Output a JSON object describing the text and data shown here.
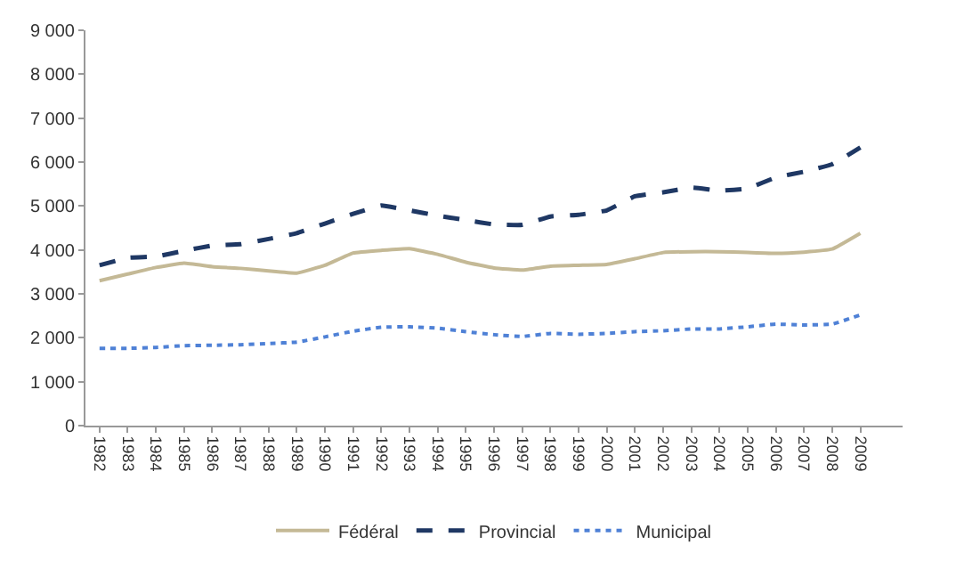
{
  "chart_data": {
    "type": "line",
    "categories": [
      "1982",
      "1983",
      "1984",
      "1985",
      "1986",
      "1987",
      "1988",
      "1989",
      "1990",
      "1991",
      "1992",
      "1993",
      "1994",
      "1995",
      "1996",
      "1997",
      "1998",
      "1999",
      "2000",
      "2001",
      "2002",
      "2003",
      "2004",
      "2005",
      "2006",
      "2007",
      "2008",
      "2009"
    ],
    "series": [
      {
        "name": "Fédéral",
        "color": "#c4b996",
        "line_style": "solid",
        "values": [
          3300,
          3450,
          3600,
          3700,
          3620,
          3580,
          3520,
          3470,
          3650,
          3930,
          3990,
          4030,
          3900,
          3720,
          3590,
          3540,
          3630,
          3650,
          3670,
          3800,
          3940,
          3960,
          3960,
          3940,
          3920,
          3950,
          4020,
          4380
        ]
      },
      {
        "name": "Provincial",
        "color": "#1f3864",
        "line_style": "dashed",
        "values": [
          3650,
          3820,
          3850,
          3980,
          4100,
          4130,
          4250,
          4380,
          4600,
          4820,
          5010,
          4900,
          4780,
          4680,
          4580,
          4570,
          4760,
          4800,
          4900,
          5220,
          5310,
          5420,
          5350,
          5400,
          5650,
          5780,
          5950,
          6330
        ]
      },
      {
        "name": "Municipal",
        "color": "#4f81d6",
        "line_style": "dotted",
        "values": [
          1760,
          1760,
          1780,
          1820,
          1830,
          1840,
          1870,
          1900,
          2020,
          2150,
          2240,
          2250,
          2220,
          2140,
          2070,
          2030,
          2100,
          2080,
          2100,
          2140,
          2160,
          2200,
          2200,
          2250,
          2310,
          2290,
          2310,
          2520
        ]
      }
    ],
    "ylim": [
      0,
      9000
    ],
    "yticks": [
      {
        "value": 0,
        "label": "0"
      },
      {
        "value": 1000,
        "label": "1 000"
      },
      {
        "value": 2000,
        "label": "2 000"
      },
      {
        "value": 3000,
        "label": "3 000"
      },
      {
        "value": 4000,
        "label": "4 000"
      },
      {
        "value": 5000,
        "label": "5 000"
      },
      {
        "value": 6000,
        "label": "6 000"
      },
      {
        "value": 7000,
        "label": "7 000"
      },
      {
        "value": 8000,
        "label": "8 000"
      },
      {
        "value": 9000,
        "label": "9 000"
      }
    ],
    "legend": "bottom",
    "marker": "none"
  }
}
